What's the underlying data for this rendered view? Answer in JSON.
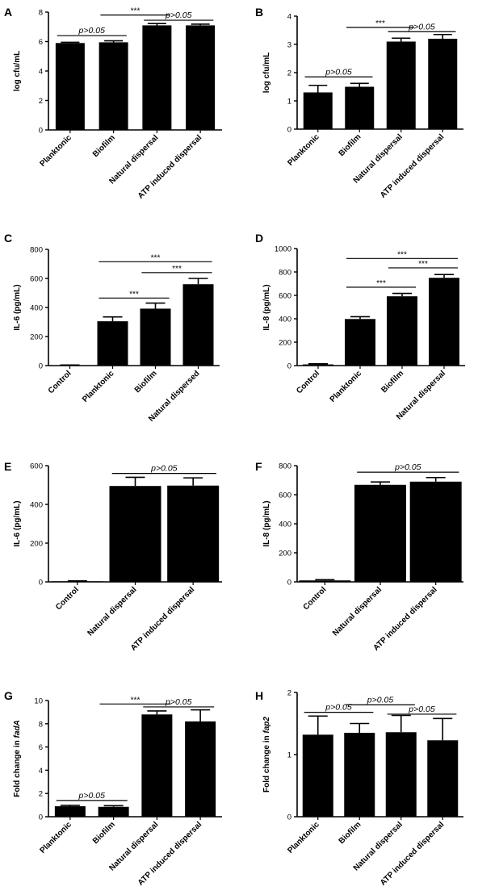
{
  "chart_data": [
    {
      "panel": "A",
      "type": "bar",
      "ylabel": "log cfu/mL",
      "ylabel_parts": [
        "log cfu/mL"
      ],
      "ylim": [
        0,
        8
      ],
      "yticks": [
        0,
        2,
        4,
        6,
        8
      ],
      "categories": [
        "Planktonic",
        "Biofilm",
        "Natural dispersal",
        "ATP induced dispersal"
      ],
      "values": [
        5.9,
        5.95,
        7.1,
        7.1
      ],
      "errors": [
        0.05,
        0.1,
        0.12,
        0.08
      ],
      "annotations": [
        {
          "text": "p>0.05",
          "style": "italic",
          "from": 0,
          "to": 1,
          "y": 6.4
        },
        {
          "text": "***",
          "style": "normal",
          "from": 1,
          "to": 2,
          "y": 7.8
        },
        {
          "text": "p>0.05",
          "style": "italic",
          "from": 2,
          "to": 3,
          "y": 7.45
        }
      ]
    },
    {
      "panel": "B",
      "type": "bar",
      "ylabel": "log cfu/mL",
      "ylabel_parts": [
        "log cfu/mL"
      ],
      "ylim": [
        0,
        4
      ],
      "yticks": [
        0,
        1,
        2,
        3,
        4
      ],
      "categories": [
        "Planktonic",
        "Biofilm",
        "Natural dispersal",
        "ATP induced dispersal"
      ],
      "values": [
        1.3,
        1.5,
        3.1,
        3.2
      ],
      "errors": [
        0.25,
        0.12,
        0.12,
        0.15
      ],
      "annotations": [
        {
          "text": "p>0.05",
          "style": "italic",
          "from": 0,
          "to": 1,
          "y": 1.85
        },
        {
          "text": "***",
          "style": "normal",
          "from": 1,
          "to": 2,
          "y": 3.6
        },
        {
          "text": "p>0.05",
          "style": "italic",
          "from": 2,
          "to": 3,
          "y": 3.45
        }
      ]
    },
    {
      "panel": "C",
      "type": "bar",
      "ylabel": "IL-6 (pg/mL)",
      "ylabel_parts": [
        "IL-6 (pg/mL)"
      ],
      "ylim": [
        0,
        800
      ],
      "yticks": [
        0,
        200,
        400,
        600,
        800
      ],
      "categories": [
        "Control",
        "Planktonic",
        "Biofilm",
        "Natural dispersed"
      ],
      "values": [
        2,
        305,
        392,
        560
      ],
      "errors": [
        2,
        30,
        38,
        40
      ],
      "annotations": [
        {
          "text": "***",
          "style": "normal",
          "from": 1,
          "to": 3,
          "y": 715
        },
        {
          "text": "***",
          "style": "normal",
          "from": 2,
          "to": 3,
          "y": 640
        },
        {
          "text": "***",
          "style": "normal",
          "from": 1,
          "to": 2,
          "y": 465
        }
      ]
    },
    {
      "panel": "D",
      "type": "bar",
      "ylabel": "IL-8 (pg/mL)",
      "ylabel_parts": [
        "IL-8 (pg/mL)"
      ],
      "ylim": [
        0,
        1000
      ],
      "yticks": [
        0,
        200,
        400,
        600,
        800,
        1000
      ],
      "categories": [
        "Control",
        "Planktonic",
        "Biofilm",
        "Natural dispersal"
      ],
      "values": [
        10,
        398,
        592,
        750
      ],
      "errors": [
        5,
        20,
        25,
        28
      ],
      "annotations": [
        {
          "text": "***",
          "style": "normal",
          "from": 1,
          "to": 3,
          "y": 915
        },
        {
          "text": "***",
          "style": "normal",
          "from": 2,
          "to": 3,
          "y": 835
        },
        {
          "text": "***",
          "style": "normal",
          "from": 1,
          "to": 2,
          "y": 670
        }
      ]
    },
    {
      "panel": "E",
      "type": "bar",
      "ylabel": "IL-6 (pg/mL)",
      "ylabel_parts": [
        "IL-6 (pg/mL)"
      ],
      "ylim": [
        0,
        600
      ],
      "yticks": [
        0,
        200,
        400,
        600
      ],
      "categories": [
        "Control",
        "Natural dispersal",
        "ATP induced dispersal"
      ],
      "values": [
        3,
        495,
        497
      ],
      "errors": [
        2,
        45,
        40
      ],
      "annotations": [
        {
          "text": "p>0.05",
          "style": "italic",
          "from": 1,
          "to": 2,
          "y": 560
        }
      ]
    },
    {
      "panel": "F",
      "type": "bar",
      "ylabel": "IL-8 (pg/mL)",
      "ylabel_parts": [
        "IL-8 (pg/mL)"
      ],
      "ylim": [
        0,
        800
      ],
      "yticks": [
        0,
        200,
        400,
        600,
        800
      ],
      "categories": [
        "Control",
        "Natural dispersal",
        "ATP induced dispersal"
      ],
      "values": [
        10,
        668,
        690
      ],
      "errors": [
        5,
        20,
        28
      ],
      "annotations": [
        {
          "text": "p>0.05",
          "style": "italic",
          "from": 1,
          "to": 2,
          "y": 755
        }
      ]
    },
    {
      "panel": "G",
      "type": "bar",
      "ylabel": "Fold change in fadA",
      "ylabel_parts": [
        "Fold change in ",
        "fadA"
      ],
      "ylim": [
        0,
        10
      ],
      "yticks": [
        0,
        2,
        4,
        6,
        8,
        10
      ],
      "categories": [
        "Planktonic",
        "Biofilm",
        "Natural dispersal",
        "ATP induced dispersal"
      ],
      "values": [
        0.9,
        0.85,
        8.8,
        8.2
      ],
      "errors": [
        0.08,
        0.1,
        0.3,
        1.0
      ],
      "annotations": [
        {
          "text": "p>0.05",
          "style": "italic",
          "from": 0,
          "to": 1,
          "y": 1.4
        },
        {
          "text": "***",
          "style": "normal",
          "from": 1,
          "to": 2,
          "y": 9.7
        },
        {
          "text": "p>0.05",
          "style": "italic",
          "from": 2,
          "to": 3,
          "y": 9.45
        }
      ]
    },
    {
      "panel": "H",
      "type": "bar",
      "ylabel": "Fold change in fap2",
      "ylabel_parts": [
        "Fold change in ",
        "fap2"
      ],
      "ylim": [
        0,
        2
      ],
      "yticks": [
        0,
        1,
        2
      ],
      "categories": [
        "Planktonic",
        "Biofilm",
        "Natural dispersal",
        "ATP induced dispersal"
      ],
      "values": [
        1.32,
        1.35,
        1.36,
        1.23
      ],
      "errors": [
        0.3,
        0.15,
        0.27,
        0.35
      ],
      "annotations": [
        {
          "text": "p>0.05",
          "style": "italic",
          "from": 0,
          "to": 1,
          "y": 1.68
        },
        {
          "text": "p>0.05",
          "style": "italic",
          "from": 1,
          "to": 2,
          "y": 1.8
        },
        {
          "text": "p>0.05",
          "style": "italic",
          "from": 2,
          "to": 3,
          "y": 1.65
        }
      ]
    }
  ]
}
